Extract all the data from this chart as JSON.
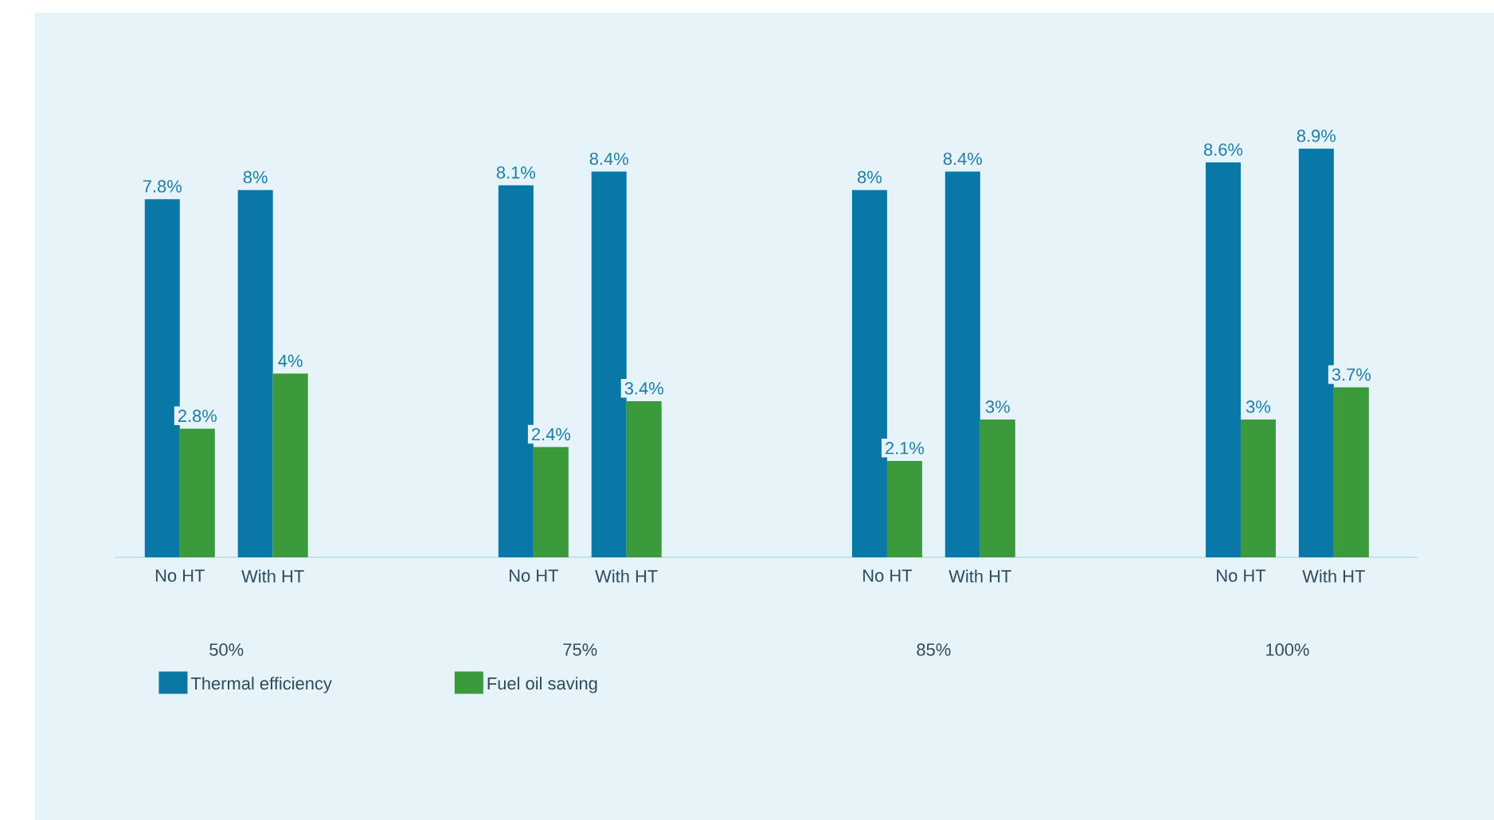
{
  "chart_data": {
    "type": "bar",
    "categories": [
      "No HT",
      "With HT",
      "No HT",
      "With HT",
      "No HT",
      "With HT",
      "No HT",
      "With HT"
    ],
    "series": [
      {
        "name": "Thermal efficiency",
        "color": "#0a78a6",
        "values": [
          7.8,
          8,
          8.1,
          8.4,
          8,
          8.4,
          8.6,
          8.9
        ],
        "value_labels": [
          "7.8%",
          "8%",
          "8.1%",
          "8.4%",
          "8%",
          "8.4%",
          "8.6%",
          "8.9%"
        ]
      },
      {
        "name": "Fuel oil saving",
        "color": "#3a9a3c",
        "values": [
          2.8,
          4,
          2.4,
          3.4,
          2.1,
          3,
          3,
          3.7
        ],
        "value_labels": [
          "2.8%",
          "4%",
          "2.4%",
          "3.4%",
          "2.1%",
          "3%",
          "3%",
          "3.7%"
        ]
      }
    ],
    "annotations": [
      "50%",
      "75%",
      "85%",
      "100%"
    ],
    "legend": "bottom left"
  }
}
